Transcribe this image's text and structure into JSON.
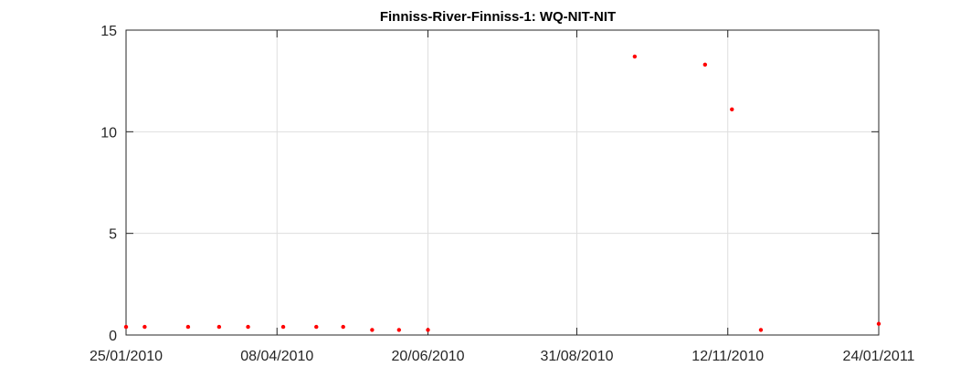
{
  "chart_data": {
    "type": "scatter",
    "title": "Finniss-River-Finniss-1: WQ-NIT-NIT",
    "xlabel": "",
    "ylabel": "",
    "x_is_date": true,
    "xlim": [
      "2010-01-25",
      "2011-01-24"
    ],
    "ylim": [
      0,
      15
    ],
    "grid": true,
    "x_ticks": [
      {
        "date": "2010-01-25",
        "label": "25/01/2010"
      },
      {
        "date": "2010-04-08",
        "label": "08/04/2010"
      },
      {
        "date": "2010-06-20",
        "label": "20/06/2010"
      },
      {
        "date": "2010-08-31",
        "label": "31/08/2010"
      },
      {
        "date": "2010-11-12",
        "label": "12/11/2010"
      },
      {
        "date": "2011-01-24",
        "label": "24/01/2011"
      }
    ],
    "y_ticks": [
      0,
      5,
      10,
      15
    ],
    "marker_color": "#ff0000",
    "series": [
      {
        "name": "WQ-NIT-NIT",
        "points": [
          {
            "x": "2010-01-25",
            "y": 0.4
          },
          {
            "x": "2010-02-03",
            "y": 0.4
          },
          {
            "x": "2010-02-24",
            "y": 0.4
          },
          {
            "x": "2010-03-11",
            "y": 0.4
          },
          {
            "x": "2010-03-25",
            "y": 0.4
          },
          {
            "x": "2010-04-11",
            "y": 0.4
          },
          {
            "x": "2010-04-27",
            "y": 0.4
          },
          {
            "x": "2010-05-10",
            "y": 0.4
          },
          {
            "x": "2010-05-24",
            "y": 0.25
          },
          {
            "x": "2010-06-06",
            "y": 0.25
          },
          {
            "x": "2010-06-20",
            "y": 0.25
          },
          {
            "x": "2010-09-28",
            "y": 13.7
          },
          {
            "x": "2010-11-01",
            "y": 13.3
          },
          {
            "x": "2010-11-14",
            "y": 11.1
          },
          {
            "x": "2010-11-28",
            "y": 0.25
          },
          {
            "x": "2011-01-24",
            "y": 0.55
          }
        ]
      }
    ]
  }
}
